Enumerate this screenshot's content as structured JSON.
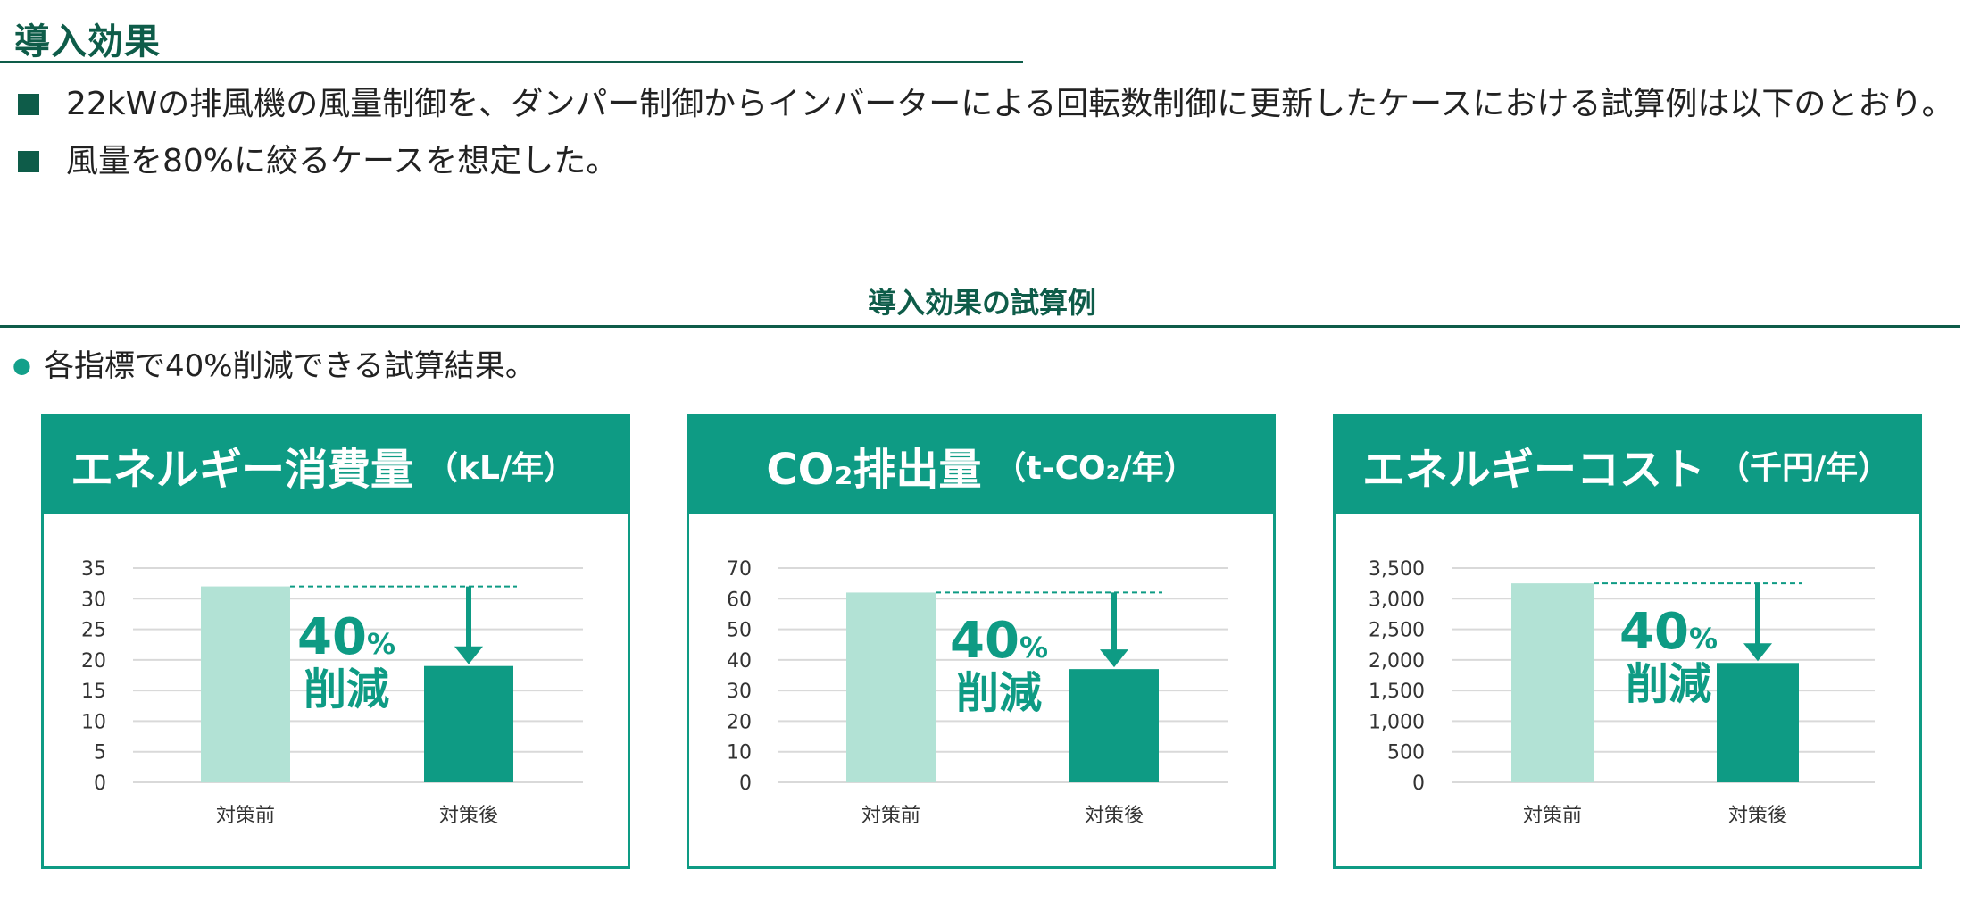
{
  "page": {
    "title": "導入効果",
    "bullets": [
      "22kWの排風機の風量制御を、ダンパー制御からインバーターによる回転数制御に更新したケースにおける試算例は以下のとおり。",
      "風量を80%に絞るケースを想定した。"
    ],
    "section_title": "導入効果の試算例",
    "note": "各指標で40%削減できる試算結果。"
  },
  "colors": {
    "accent": "#0e9b84",
    "dark_green": "#0e5c49",
    "bar_before": "#b2e2d5",
    "bar_after": "#0e9b84",
    "grid": "#d9d9d9"
  },
  "reduction": {
    "num": "40",
    "pct": "%",
    "word": "削減"
  },
  "chart_data": [
    {
      "type": "bar",
      "title": "エネルギー消費量",
      "unit": "（kL/年）",
      "categories": [
        "対策前",
        "対策後"
      ],
      "values": [
        32,
        19
      ],
      "ylim": [
        0,
        35
      ],
      "yticks": [
        "0",
        "5",
        "10",
        "15",
        "20",
        "25",
        "30",
        "35"
      ],
      "grid": true,
      "legend": "none"
    },
    {
      "type": "bar",
      "title": "CO₂排出量",
      "unit": "（t-CO₂/年）",
      "categories": [
        "対策前",
        "対策後"
      ],
      "values": [
        62,
        37
      ],
      "ylim": [
        0,
        70
      ],
      "yticks": [
        "0",
        "10",
        "20",
        "30",
        "40",
        "50",
        "60",
        "70"
      ],
      "grid": true,
      "legend": "none"
    },
    {
      "type": "bar",
      "title": "エネルギーコスト",
      "unit": "（千円/年）",
      "categories": [
        "対策前",
        "対策後"
      ],
      "values": [
        3250,
        1950
      ],
      "ylim": [
        0,
        3500
      ],
      "yticks": [
        "0",
        "500",
        "1,000",
        "1,500",
        "2,000",
        "2,500",
        "3,000",
        "3,500"
      ],
      "grid": true,
      "legend": "none"
    }
  ]
}
